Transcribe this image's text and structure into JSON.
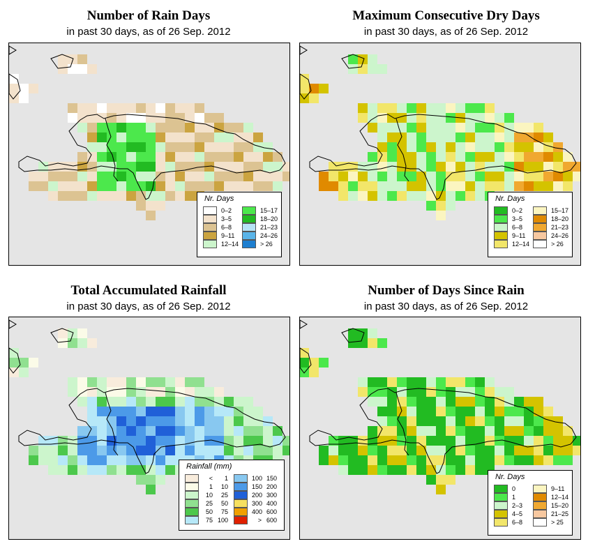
{
  "panels": [
    {
      "title": "Number of Rain Days",
      "subtitle": "in past 30 days, as of  26 Sep. 2012",
      "legend": {
        "title": "Nr. Days",
        "items": [
          {
            "label": "0–2",
            "color": "#ffffff"
          },
          {
            "label": "3–5",
            "color": "#f3e2cc"
          },
          {
            "label": "6–8",
            "color": "#dcc392"
          },
          {
            "label": "9–11",
            "color": "#cba440"
          },
          {
            "label": "12–14",
            "color": "#ccf5cc"
          },
          {
            "label": "15–17",
            "color": "#4ce84c"
          },
          {
            "label": "18–20",
            "color": "#22bb22"
          },
          {
            "label": "21–23",
            "color": "#b6e3f5"
          },
          {
            "label": "24–26",
            "color": "#5ab4e8"
          },
          {
            "label": "> 26",
            "color": "#1e7fd0"
          }
        ]
      }
    },
    {
      "title": "Maximum Consecutive Dry Days",
      "subtitle": "in past 30 days, as of  26 Sep. 2012",
      "legend": {
        "title": "Nr. Days",
        "items": [
          {
            "label": "0–2",
            "color": "#22bb22"
          },
          {
            "label": "3–5",
            "color": "#4ce84c"
          },
          {
            "label": "6–8",
            "color": "#ccf5cc"
          },
          {
            "label": "9–11",
            "color": "#d4c300"
          },
          {
            "label": "12–14",
            "color": "#f2e66a"
          },
          {
            "label": "15–17",
            "color": "#fbf5c0"
          },
          {
            "label": "18–20",
            "color": "#e08a00"
          },
          {
            "label": "21–23",
            "color": "#f0a830"
          },
          {
            "label": "24–26",
            "color": "#f7c8a0"
          },
          {
            "label": "> 26",
            "color": "#ffffff"
          }
        ]
      }
    },
    {
      "title": "Total Accumulated Rainfall",
      "subtitle": "in past 30 days, as of  26 Sep. 2012",
      "legend": {
        "title": "Rainfall (mm)",
        "items": [
          {
            "a": "<",
            "b": "1",
            "color": "#f8ecdc"
          },
          {
            "a": "1",
            "b": "10",
            "color": "#fbfbe8"
          },
          {
            "a": "10",
            "b": "25",
            "color": "#ccf5cc"
          },
          {
            "a": "25",
            "b": "50",
            "color": "#90e090"
          },
          {
            "a": "50",
            "b": "75",
            "color": "#4cc84c"
          },
          {
            "a": "75",
            "b": "100",
            "color": "#b6e8f8"
          },
          {
            "a": "100",
            "b": "150",
            "color": "#88c8f0"
          },
          {
            "a": "150",
            "b": "200",
            "color": "#4c9ae8"
          },
          {
            "a": "200",
            "b": "300",
            "color": "#2060d8"
          },
          {
            "a": "300",
            "b": "400",
            "color": "#f6e060"
          },
          {
            "a": "400",
            "b": "600",
            "color": "#f0a000"
          },
          {
            "a": ">",
            "b": "600",
            "color": "#e02000"
          }
        ]
      }
    },
    {
      "title": "Number of Days Since Rain",
      "subtitle": "in past 30 days, as of  26 Sep. 2012",
      "legend": {
        "title": "Nr. Days",
        "items": [
          {
            "label": "0",
            "color": "#22bb22"
          },
          {
            "label": "1",
            "color": "#4ce84c"
          },
          {
            "label": "2–3",
            "color": "#ccf5cc"
          },
          {
            "label": "4–5",
            "color": "#d4c300"
          },
          {
            "label": "6–8",
            "color": "#f2e66a"
          },
          {
            "label": "9–11",
            "color": "#fbf5c0"
          },
          {
            "label": "12–14",
            "color": "#e08a00"
          },
          {
            "label": "15–20",
            "color": "#f0a830"
          },
          {
            "label": "21–25",
            "color": "#f7c8a0"
          },
          {
            "label": "> 25",
            "color": "#ffffff"
          }
        ]
      }
    }
  ]
}
